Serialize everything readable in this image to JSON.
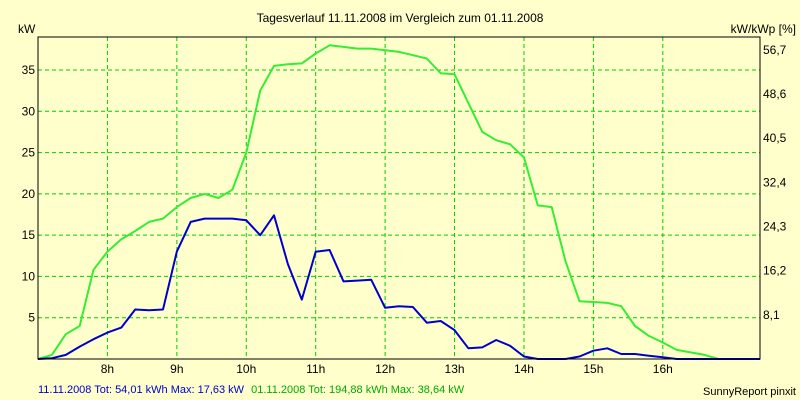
{
  "chart_data": {
    "type": "line",
    "title": "Tagesverlauf 11.11.2008 im Vergleich zum 01.11.2008",
    "ylabel_left": "kW",
    "ylabel_right": "kW/kWp [%]",
    "xlim": [
      7.0,
      17.4
    ],
    "ylim": [
      0,
      39
    ],
    "x_ticks": [
      {
        "value": 8,
        "label": "8h"
      },
      {
        "value": 9,
        "label": "9h"
      },
      {
        "value": 10,
        "label": "10h"
      },
      {
        "value": 11,
        "label": "11h"
      },
      {
        "value": 12,
        "label": "12h"
      },
      {
        "value": 13,
        "label": "13h"
      },
      {
        "value": 14,
        "label": "14h"
      },
      {
        "value": 15,
        "label": "15h"
      },
      {
        "value": 16,
        "label": "16h"
      }
    ],
    "y_ticks_left": [
      5,
      10,
      15,
      20,
      25,
      30,
      35
    ],
    "y_ticks_right": [
      {
        "value": 5.35,
        "label": "8,1"
      },
      {
        "value": 10.7,
        "label": "16,2"
      },
      {
        "value": 16.05,
        "label": "24,3"
      },
      {
        "value": 21.4,
        "label": "32,4"
      },
      {
        "value": 26.75,
        "label": "40,5"
      },
      {
        "value": 32.1,
        "label": "48,6"
      },
      {
        "value": 37.45,
        "label": "56,7"
      }
    ],
    "grid": true,
    "series": [
      {
        "name": "11.11.2008",
        "color": "#0000cc",
        "x": [
          7.0,
          7.2,
          7.4,
          7.6,
          7.8,
          8.0,
          8.2,
          8.4,
          8.6,
          8.8,
          9.0,
          9.2,
          9.4,
          9.6,
          9.8,
          10.0,
          10.2,
          10.4,
          10.6,
          10.8,
          11.0,
          11.2,
          11.4,
          11.6,
          11.8,
          12.0,
          12.2,
          12.4,
          12.6,
          12.8,
          13.0,
          13.2,
          13.4,
          13.6,
          13.8,
          14.0,
          14.2,
          14.4,
          14.6,
          14.8,
          15.0,
          15.2,
          15.4,
          15.6,
          15.8,
          16.0,
          16.2,
          16.4,
          16.6,
          16.8,
          17.0,
          17.2,
          17.4
        ],
        "values": [
          0,
          0.1,
          0.5,
          1.5,
          2.4,
          3.2,
          3.8,
          6.0,
          5.9,
          6.0,
          13.0,
          16.6,
          17.0,
          17.0,
          17.0,
          16.8,
          15.0,
          17.4,
          11.5,
          7.2,
          13.0,
          13.2,
          9.4,
          9.5,
          9.6,
          6.2,
          6.4,
          6.3,
          4.4,
          4.6,
          3.5,
          1.3,
          1.4,
          2.3,
          1.6,
          0.3,
          0,
          0,
          0,
          0.3,
          1.0,
          1.3,
          0.6,
          0.6,
          0.4,
          0.2,
          0,
          0,
          0,
          0,
          0,
          0,
          0
        ]
      },
      {
        "name": "01.11.2008",
        "color": "#33ee33",
        "x": [
          7.0,
          7.2,
          7.4,
          7.6,
          7.8,
          8.0,
          8.2,
          8.4,
          8.6,
          8.8,
          9.0,
          9.2,
          9.4,
          9.6,
          9.8,
          10.0,
          10.2,
          10.4,
          10.6,
          10.8,
          11.0,
          11.2,
          11.4,
          11.6,
          11.8,
          12.0,
          12.2,
          12.4,
          12.6,
          12.8,
          13.0,
          13.2,
          13.4,
          13.6,
          13.8,
          14.0,
          14.2,
          14.4,
          14.6,
          14.8,
          15.0,
          15.2,
          15.4,
          15.6,
          15.8,
          16.0,
          16.2,
          16.4,
          16.6,
          16.8,
          17.0,
          17.2,
          17.4
        ],
        "values": [
          0,
          0.5,
          3.0,
          4.0,
          10.8,
          13.0,
          14.5,
          15.5,
          16.6,
          17.0,
          18.4,
          19.5,
          20.0,
          19.5,
          20.5,
          25.0,
          32.5,
          35.5,
          35.7,
          35.8,
          37.0,
          38.0,
          37.8,
          37.6,
          37.6,
          37.4,
          37.2,
          36.8,
          36.4,
          34.6,
          34.5,
          31.0,
          27.5,
          26.5,
          26.0,
          24.4,
          18.6,
          18.4,
          11.8,
          7.0,
          6.9,
          6.8,
          6.4,
          4.0,
          2.8,
          2.0,
          1.1,
          0.8,
          0.5,
          0,
          0,
          0,
          0
        ]
      }
    ],
    "footer": {
      "left_blue": "11.11.2008 Tot: 54,01 kWh Max: 17,63 kW",
      "left_green": "01.11.2008 Tot: 194,88 kWh Max: 38,64 kW",
      "credit": "SunnyReport pinxit"
    }
  }
}
